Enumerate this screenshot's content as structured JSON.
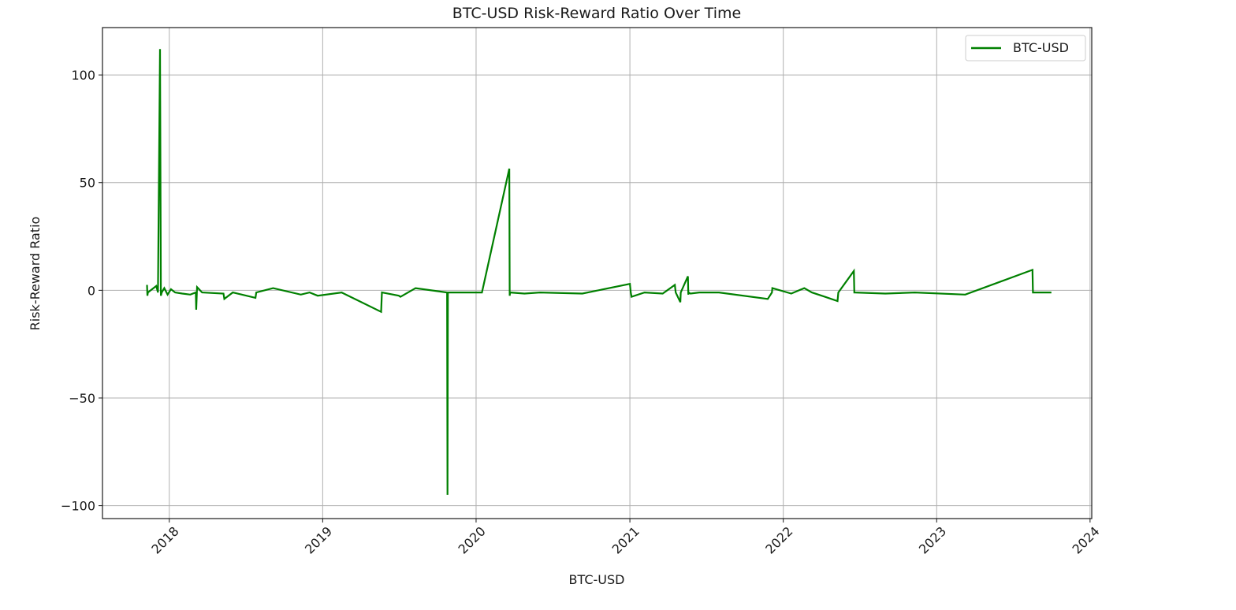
{
  "chart_data": {
    "type": "line",
    "title": "BTC-USD Risk-Reward Ratio Over Time",
    "xlabel": "BTC-USD",
    "ylabel": "Risk-Reward Ratio",
    "x_ticks": [
      "2018",
      "2019",
      "2020",
      "2021",
      "2022",
      "2023",
      "2024"
    ],
    "y_ticks": [
      100,
      50,
      0,
      -50,
      -100
    ],
    "y_tick_labels": [
      "100",
      "50",
      "0",
      "−50",
      "−100"
    ],
    "xlim": [
      "2017-07-26",
      "2024-01-05"
    ],
    "ylim": [
      -106,
      122
    ],
    "grid": true,
    "legend_position": "top-right",
    "color": "#008000",
    "series": [
      {
        "name": "BTC-USD",
        "x": [
          "2017-11-09",
          "2017-11-10",
          "2017-11-11",
          "2017-12-01",
          "2017-12-05",
          "2017-12-10",
          "2017-12-12",
          "2017-12-14",
          "2017-12-20",
          "2017-12-28",
          "2018-01-05",
          "2018-01-15",
          "2018-02-01",
          "2018-02-20",
          "2018-03-05",
          "2018-03-06",
          "2018-03-08",
          "2018-03-20",
          "2018-05-10",
          "2018-05-12",
          "2018-06-01",
          "2018-07-25",
          "2018-07-27",
          "2018-09-05",
          "2018-11-10",
          "2018-12-01",
          "2018-12-20",
          "2019-02-15",
          "2019-05-20",
          "2019-05-22",
          "2019-07-01",
          "2019-07-05",
          "2019-08-10",
          "2019-10-24",
          "2019-10-25",
          "2019-10-26",
          "2020-01-15",
          "2020-03-20",
          "2020-03-21",
          "2020-03-22",
          "2020-04-25",
          "2020-06-01",
          "2020-09-10",
          "2021-01-01",
          "2021-01-03",
          "2021-01-05",
          "2021-02-05",
          "2021-03-20",
          "2021-04-18",
          "2021-04-20",
          "2021-05-01",
          "2021-05-02",
          "2021-05-19",
          "2021-05-20",
          "2021-05-21",
          "2021-05-25",
          "2021-06-15",
          "2021-08-01",
          "2021-11-25",
          "2021-12-05",
          "2021-12-06",
          "2022-01-20",
          "2022-02-20",
          "2022-03-10",
          "2022-04-10",
          "2022-05-10",
          "2022-05-12",
          "2022-06-18",
          "2022-06-19",
          "2022-06-20",
          "2022-09-01",
          "2022-11-10",
          "2023-03-10",
          "2023-08-17",
          "2023-08-18",
          "2023-08-19",
          "2023-10-01"
        ],
        "y": [
          2.5,
          -2.5,
          -1.0,
          2.0,
          -1.0,
          112,
          -2.5,
          -1.0,
          1.0,
          -2.0,
          0.5,
          -1.0,
          -1.5,
          -2.0,
          -1.0,
          -9.0,
          1.5,
          -1.0,
          -1.5,
          -4.0,
          -1.0,
          -3.5,
          -1.0,
          1.0,
          -2.0,
          -1.0,
          -2.5,
          -1.0,
          -10.0,
          -1.0,
          -2.5,
          -3.0,
          1.0,
          -1.0,
          -95,
          -1.0,
          -1.0,
          56.5,
          -2.5,
          -1.0,
          -1.5,
          -1.0,
          -1.5,
          3.0,
          -1.0,
          -3.0,
          -1.0,
          -1.5,
          2.5,
          -1.0,
          -5.5,
          -1.0,
          6.5,
          -2.0,
          -1.0,
          -1.5,
          -1.0,
          -1.0,
          -4.0,
          -1.0,
          1.0,
          -1.5,
          1.0,
          -1.0,
          -3.0,
          -5.0,
          -1.0,
          9.0,
          -1.0,
          -1.0,
          -1.5,
          -1.0,
          -2.0,
          9.5,
          -1.0,
          -1.0,
          -1.0
        ]
      }
    ]
  }
}
